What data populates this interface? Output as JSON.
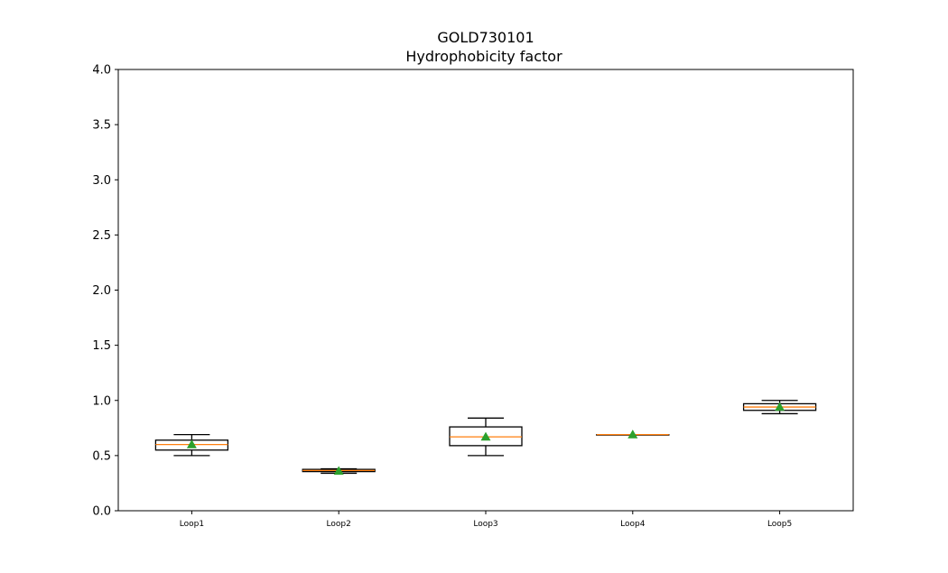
{
  "chart_data": {
    "type": "box",
    "title": "GOLD730101",
    "subtitle": "Hydrophobicity factor",
    "xlabel": "",
    "ylabel": "",
    "ylim": [
      0,
      4
    ],
    "yticks": [
      "0.0",
      "0.5",
      "1.0",
      "1.5",
      "2.0",
      "2.5",
      "3.0",
      "3.5",
      "4.0"
    ],
    "grid": false,
    "colors": {
      "box": "#000000",
      "median": "#ff7f0e",
      "mean": "#2ca02c"
    },
    "categories": [
      "Loop1",
      "Loop2",
      "Loop3",
      "Loop4",
      "Loop5"
    ],
    "boxes": [
      {
        "whisker_low": 0.5,
        "q1": 0.55,
        "median": 0.6,
        "q3": 0.64,
        "whisker_high": 0.69,
        "mean": 0.6
      },
      {
        "whisker_low": 0.34,
        "q1": 0.355,
        "median": 0.365,
        "q3": 0.375,
        "whisker_high": 0.38,
        "mean": 0.36
      },
      {
        "whisker_low": 0.5,
        "q1": 0.59,
        "median": 0.67,
        "q3": 0.76,
        "whisker_high": 0.84,
        "mean": 0.67
      },
      {
        "whisker_low": 0.69,
        "q1": 0.69,
        "median": 0.69,
        "q3": 0.69,
        "whisker_high": 0.69,
        "mean": 0.69
      },
      {
        "whisker_low": 0.88,
        "q1": 0.91,
        "median": 0.94,
        "q3": 0.97,
        "whisker_high": 1.0,
        "mean": 0.94
      }
    ]
  }
}
